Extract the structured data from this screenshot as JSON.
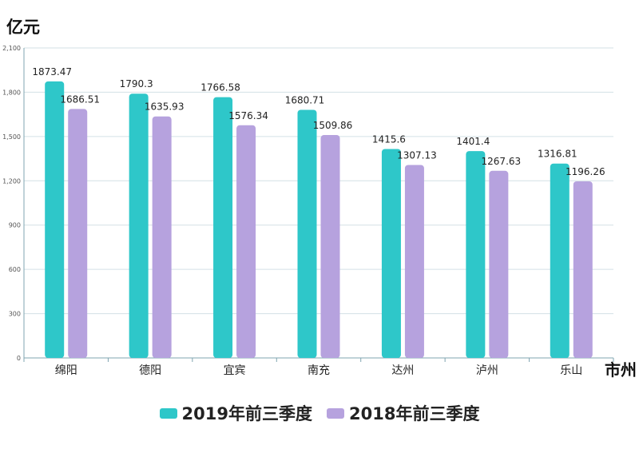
{
  "chart_data": {
    "type": "bar",
    "ylabel": "亿元",
    "xlabel": "市州",
    "ylim": [
      0,
      2100
    ],
    "yticks": [
      0,
      300,
      600,
      900,
      1200,
      1500,
      1800,
      2100
    ],
    "ytick_labels": [
      "0",
      "300",
      "600",
      "900",
      "1,200",
      "1,500",
      "1,800",
      "2,100"
    ],
    "grid": true,
    "legend_position": "bottom",
    "categories": [
      "绵阳",
      "德阳",
      "宜宾",
      "南充",
      "达州",
      "泸州",
      "乐山"
    ],
    "series": [
      {
        "name": "2019年前三季度",
        "color": "#2ec7c9",
        "values": [
          1873.47,
          1790.3,
          1766.58,
          1680.71,
          1415.6,
          1401.4,
          1316.81
        ],
        "labels": [
          "1873.47",
          "1790.3",
          "1766.58",
          "1680.71",
          "1415.6",
          "1401.4",
          "1316.81"
        ]
      },
      {
        "name": "2018年前三季度",
        "color": "#b6a2de",
        "values": [
          1686.51,
          1635.93,
          1576.34,
          1509.86,
          1307.13,
          1267.63,
          1196.26
        ],
        "labels": [
          "1686.51",
          "1635.93",
          "1576.34",
          "1509.86",
          "1307.13",
          "1267.63",
          "1196.26"
        ]
      }
    ]
  }
}
